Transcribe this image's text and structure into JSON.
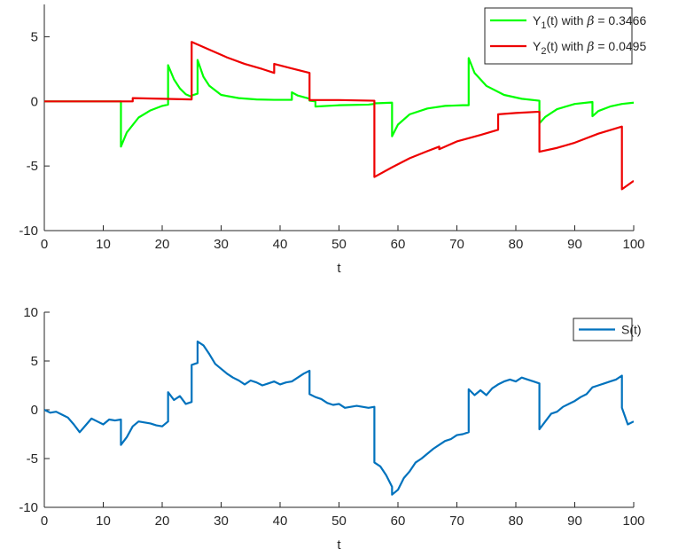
{
  "chart_data": [
    {
      "type": "line",
      "xlabel": "t",
      "ylabel": "",
      "xlim": [
        0,
        100
      ],
      "ylim": [
        -10,
        7.5
      ],
      "xticks": [
        "0",
        "10",
        "20",
        "30",
        "40",
        "50",
        "60",
        "70",
        "80",
        "90",
        "100"
      ],
      "yticks": [
        "-10",
        "-5",
        "0",
        "5"
      ],
      "legend_position": "top-right",
      "grid": false,
      "series": [
        {
          "name": "Y1(t) with β = 0.3466",
          "legend_main": "Y",
          "legend_sub": "1",
          "legend_pre": "(t) with ",
          "legend_beta": "β",
          "legend_post": " = 0.3466",
          "color": "#00ff00",
          "x": [
            0,
            13,
            13,
            14,
            16,
            18,
            20,
            21,
            21,
            22,
            23,
            24,
            25,
            25.01,
            26,
            26,
            27,
            28,
            30,
            33,
            36,
            39,
            42,
            42,
            43,
            45,
            45,
            46,
            46,
            50,
            55,
            56,
            56,
            58,
            59,
            59,
            60,
            62,
            65,
            68,
            71,
            72,
            72,
            73,
            75,
            78,
            81,
            84,
            84,
            85,
            87,
            90,
            93,
            93,
            94,
            96,
            98,
            100
          ],
          "y": [
            0,
            0,
            -3.5,
            -2.4,
            -1.25,
            -0.7,
            -0.35,
            -0.25,
            2.8,
            1.7,
            1.0,
            0.55,
            0.35,
            0.45,
            0.6,
            3.2,
            1.9,
            1.2,
            0.5,
            0.25,
            0.15,
            0.12,
            0.12,
            0.7,
            0.45,
            0.2,
            0.05,
            0.0,
            -0.4,
            -0.3,
            -0.25,
            -0.2,
            -0.15,
            -0.12,
            -0.1,
            -2.7,
            -1.8,
            -1.0,
            -0.55,
            -0.35,
            -0.3,
            -0.3,
            3.35,
            2.2,
            1.2,
            0.5,
            0.2,
            0.05,
            -1.7,
            -1.2,
            -0.6,
            -0.2,
            -0.05,
            -1.15,
            -0.75,
            -0.4,
            -0.2,
            -0.1
          ]
        },
        {
          "name": "Y2(t) with β = 0.0495",
          "legend_main": "Y",
          "legend_sub": "2",
          "legend_pre": "(t) with ",
          "legend_beta": "β",
          "legend_post": " = 0.0495",
          "color": "#ee0000",
          "x": [
            0,
            15,
            15,
            20,
            25,
            25,
            28,
            31,
            34,
            37,
            39,
            39,
            42,
            45,
            45,
            50,
            56,
            56,
            59,
            62,
            65,
            67,
            67,
            70,
            74,
            77,
            77,
            80,
            84,
            84,
            87,
            90,
            94,
            98,
            98,
            100
          ],
          "y": [
            0,
            0,
            0.25,
            0.2,
            0.15,
            4.6,
            4.0,
            3.4,
            2.9,
            2.5,
            2.2,
            2.9,
            2.55,
            2.2,
            0.1,
            0.1,
            0.05,
            -5.85,
            -5.1,
            -4.4,
            -3.85,
            -3.5,
            -3.7,
            -3.1,
            -2.6,
            -2.2,
            -1.0,
            -0.9,
            -0.8,
            -3.9,
            -3.6,
            -3.2,
            -2.5,
            -1.95,
            -6.8,
            -6.15
          ]
        }
      ]
    },
    {
      "type": "line",
      "xlabel": "t",
      "ylabel": "",
      "xlim": [
        0,
        100
      ],
      "ylim": [
        -10,
        10
      ],
      "xticks": [
        "0",
        "10",
        "20",
        "30",
        "40",
        "50",
        "60",
        "70",
        "80",
        "90",
        "100"
      ],
      "yticks": [
        "-10",
        "-5",
        "0",
        "5",
        "10"
      ],
      "legend_position": "top-right",
      "grid": false,
      "series": [
        {
          "name": "S(t)",
          "color": "#0072bd",
          "x": [
            0,
            1,
            2,
            3,
            4,
            5,
            6,
            7,
            8,
            9,
            10,
            11,
            12,
            13,
            13,
            14,
            15,
            16,
            17,
            18,
            19,
            20,
            21,
            21,
            22,
            23,
            24,
            25,
            25,
            26,
            26,
            27,
            28,
            29,
            30,
            31,
            32,
            33,
            34,
            35,
            36,
            37,
            38,
            39,
            40,
            41,
            42,
            43,
            44,
            45,
            45,
            46,
            47,
            48,
            49,
            50,
            51,
            52,
            53,
            54,
            55,
            56,
            56,
            57,
            58,
            59,
            59,
            60,
            61,
            62,
            63,
            64,
            65,
            66,
            67,
            68,
            69,
            70,
            71,
            72,
            72,
            73,
            74,
            75,
            76,
            77,
            78,
            79,
            80,
            81,
            82,
            83,
            84,
            84,
            85,
            86,
            87,
            88,
            89,
            90,
            91,
            92,
            93,
            94,
            95,
            96,
            97,
            98,
            98,
            99,
            100
          ],
          "y": [
            0,
            -0.3,
            -0.2,
            -0.5,
            -0.8,
            -1.5,
            -2.3,
            -1.6,
            -0.9,
            -1.2,
            -1.5,
            -1.0,
            -1.1,
            -1.0,
            -3.6,
            -2.8,
            -1.7,
            -1.2,
            -1.3,
            -1.4,
            -1.6,
            -1.7,
            -1.2,
            1.8,
            1.0,
            1.4,
            0.6,
            0.8,
            4.6,
            4.8,
            7.0,
            6.6,
            5.7,
            4.7,
            4.2,
            3.7,
            3.3,
            3.0,
            2.6,
            3.0,
            2.8,
            2.5,
            2.7,
            2.9,
            2.6,
            2.8,
            2.9,
            3.3,
            3.7,
            4.0,
            1.6,
            1.3,
            1.1,
            0.7,
            0.5,
            0.6,
            0.2,
            0.3,
            0.4,
            0.3,
            0.2,
            0.3,
            -5.4,
            -5.8,
            -6.7,
            -7.9,
            -8.7,
            -8.2,
            -7.0,
            -6.3,
            -5.4,
            -5.0,
            -4.5,
            -4.0,
            -3.6,
            -3.2,
            -3.0,
            -2.6,
            -2.5,
            -2.3,
            2.1,
            1.5,
            2.0,
            1.5,
            2.2,
            2.6,
            2.9,
            3.1,
            2.9,
            3.3,
            3.1,
            2.9,
            2.7,
            -2.0,
            -1.2,
            -0.4,
            -0.2,
            0.3,
            0.6,
            0.9,
            1.3,
            1.6,
            2.3,
            2.5,
            2.7,
            2.9,
            3.1,
            3.5,
            0.2,
            -1.5,
            -1.2
          ]
        }
      ]
    }
  ]
}
